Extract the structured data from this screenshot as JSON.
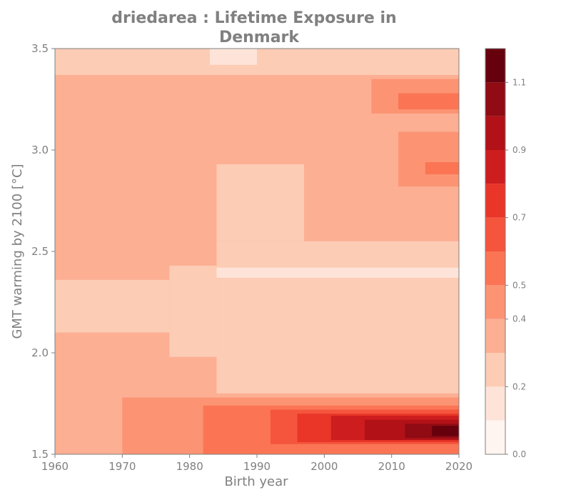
{
  "chart_data": {
    "type": "heatmap",
    "subtype": "filled-contour",
    "title_line1": "driedarea : Lifetime Exposure in",
    "title_line2": "Denmark",
    "xlabel": "Birth year",
    "ylabel": "GMT warming by 2100 [°C]",
    "xlim": [
      1960,
      2020
    ],
    "ylim": [
      1.5,
      3.5
    ],
    "x_ticks": [
      "1960",
      "1970",
      "1980",
      "1990",
      "2000",
      "2010",
      "2020"
    ],
    "y_ticks": [
      "1.5",
      "2.0",
      "2.5",
      "3.0",
      "3.5"
    ],
    "colorbar": {
      "range": [
        0.0,
        1.2
      ],
      "levels": [
        0.0,
        0.1,
        0.2,
        0.3,
        0.4,
        0.5,
        0.6,
        0.7,
        0.8,
        0.9,
        1.0,
        1.1,
        1.2
      ],
      "tick_labels": [
        "0.0",
        "0.2",
        "0.4",
        "0.5",
        "0.7",
        "0.9",
        "1.1"
      ],
      "tick_values": [
        0.0,
        0.2,
        0.4,
        0.5,
        0.7,
        0.9,
        1.1
      ],
      "colors": [
        "#fff5f0",
        "#fee4d8",
        "#fcccb5",
        "#fcaf93",
        "#fc9474",
        "#fb7555",
        "#f5553d",
        "#e93629",
        "#ce1d1f",
        "#b11117",
        "#900b13",
        "#67000d"
      ]
    },
    "regions": [
      {
        "level": 3,
        "desc": "background band",
        "x": [
          1960,
          2020
        ],
        "y": [
          1.5,
          3.5
        ]
      },
      {
        "level": 2,
        "x": [
          1960,
          1977
        ],
        "y": [
          2.1,
          2.36
        ]
      },
      {
        "level": 2,
        "x": [
          1977,
          1984
        ],
        "y": [
          1.98,
          2.43
        ]
      },
      {
        "level": 2,
        "x": [
          1984,
          2020
        ],
        "y": [
          1.8,
          2.55
        ]
      },
      {
        "level": 2,
        "x": [
          1984,
          1997
        ],
        "y": [
          2.55,
          2.93
        ]
      },
      {
        "level": 2,
        "x": [
          1960,
          2020
        ],
        "y": [
          3.37,
          3.5
        ]
      },
      {
        "level": 1,
        "x": [
          1984,
          2020
        ],
        "y": [
          2.37,
          2.42
        ]
      },
      {
        "level": 1,
        "x": [
          1983,
          1990
        ],
        "y": [
          3.42,
          3.5
        ]
      },
      {
        "level": 4,
        "x": [
          1970,
          1988
        ],
        "y": [
          1.5,
          1.78
        ]
      },
      {
        "level": 4,
        "x": [
          1988,
          2020
        ],
        "y": [
          1.5,
          1.78
        ]
      },
      {
        "level": 4,
        "x": [
          2007,
          2020
        ],
        "y": [
          3.18,
          3.35
        ]
      },
      {
        "level": 4,
        "x": [
          2011,
          2020
        ],
        "y": [
          2.82,
          3.09
        ]
      },
      {
        "level": 5,
        "x": [
          1982,
          2020
        ],
        "y": [
          1.5,
          1.74
        ]
      },
      {
        "level": 5,
        "x": [
          2011,
          2020
        ],
        "y": [
          3.2,
          3.28
        ]
      },
      {
        "level": 5,
        "x": [
          2015,
          2020
        ],
        "y": [
          2.88,
          2.94
        ]
      },
      {
        "level": 6,
        "x": [
          1992,
          2020
        ],
        "y": [
          1.55,
          1.72
        ]
      },
      {
        "level": 7,
        "x": [
          1996,
          2020
        ],
        "y": [
          1.56,
          1.7
        ]
      },
      {
        "level": 8,
        "x": [
          2001,
          2020
        ],
        "y": [
          1.57,
          1.69
        ]
      },
      {
        "level": 9,
        "x": [
          2006,
          2020
        ],
        "y": [
          1.57,
          1.67
        ]
      },
      {
        "level": 10,
        "x": [
          2012,
          2020
        ],
        "y": [
          1.58,
          1.65
        ]
      },
      {
        "level": 11,
        "x": [
          2016,
          2020
        ],
        "y": [
          1.59,
          1.64
        ]
      }
    ]
  }
}
